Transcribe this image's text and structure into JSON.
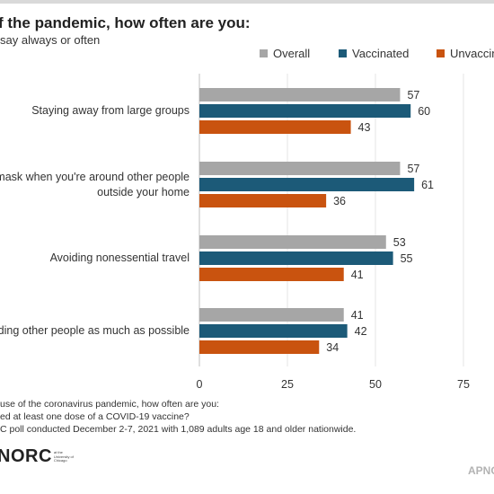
{
  "header": {
    "title": "f the pandemic, how often are you:",
    "subtitle": "say always or often"
  },
  "chart_data": {
    "type": "bar",
    "orientation": "horizontal",
    "categories": [
      "Staying away from large groups",
      "mask when you're around other people outside your home",
      "Avoiding nonessential travel",
      "iding other people as much as possible"
    ],
    "category_lines": [
      [
        "Staying away from large groups"
      ],
      [
        "mask when you're around other people",
        "outside your home"
      ],
      [
        "Avoiding nonessential travel"
      ],
      [
        "iding other people as much as possible"
      ]
    ],
    "series": [
      {
        "name": "Overall",
        "color": "#a6a6a6",
        "values": [
          57,
          57,
          53,
          41
        ]
      },
      {
        "name": "Vaccinated",
        "color": "#1c5a78",
        "values": [
          60,
          61,
          55,
          42
        ]
      },
      {
        "name": "Unvaccin",
        "color": "#c9530f",
        "values": [
          43,
          36,
          41,
          34
        ]
      }
    ],
    "xlim": [
      0,
      75
    ],
    "xticks": [
      0,
      25,
      50,
      75
    ],
    "grid": true,
    "legend_position": "top-right",
    "data_labels": true
  },
  "footnotes": [
    "use of the coronavirus pandemic, how often are you:",
    "ed at least one dose of a COVID-19 vaccine?",
    "C poll conducted December 2-7, 2021 with 1,089 adults age 18 and older nationwide."
  ],
  "branding": {
    "logo_text": "NORC",
    "logo_subtext": [
      "at the",
      "University of",
      "Chicago"
    ],
    "credit": "APNO"
  }
}
